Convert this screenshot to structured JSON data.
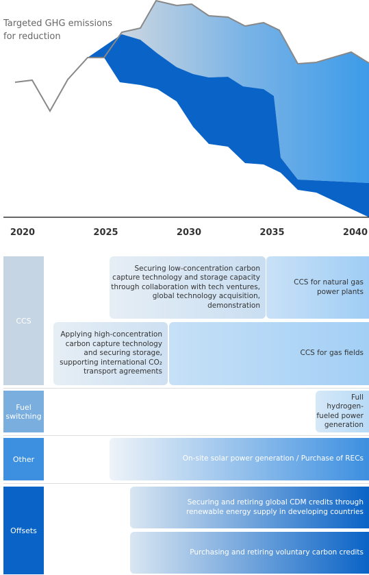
{
  "chart": {
    "title_lines": [
      "Targeted GHG emissions",
      "for reduction"
    ],
    "x_labels": [
      "2020",
      "2025",
      "2030",
      "2035",
      "2040"
    ]
  },
  "rows": [
    {
      "label": [
        "CCS"
      ],
      "bars": [
        {
          "lines": [
            "Securing low-concentration carbon",
            "capture technology and storage capacity",
            "through collaboration with tech ventures,",
            "global technology acquisition,",
            "demonstration"
          ]
        },
        {
          "lines": [
            "CCS for natural gas",
            "power plants"
          ]
        },
        {
          "lines": [
            "Applying high-concentration",
            "carbon capture technology",
            "and securing storage,",
            "supporting international CO₂",
            "transport agreements"
          ]
        },
        {
          "lines": [
            "CCS for gas fields"
          ]
        }
      ]
    },
    {
      "label": [
        "Fuel",
        "switching"
      ],
      "bars": [
        {
          "lines": [
            "Full",
            "hydrogen-",
            "fueled power",
            "generation"
          ]
        }
      ]
    },
    {
      "label": [
        "Other"
      ],
      "bars": [
        {
          "lines": [
            "On-site solar power generation / Purchase of RECs"
          ]
        }
      ]
    },
    {
      "label": [
        "Offsets"
      ],
      "bars": [
        {
          "lines": [
            "Securing and retiring global CDM credits through",
            "renewable energy supply in developing countries"
          ]
        },
        {
          "lines": [
            "Purchasing and retiring voluntary carbon credits"
          ]
        }
      ]
    }
  ]
}
